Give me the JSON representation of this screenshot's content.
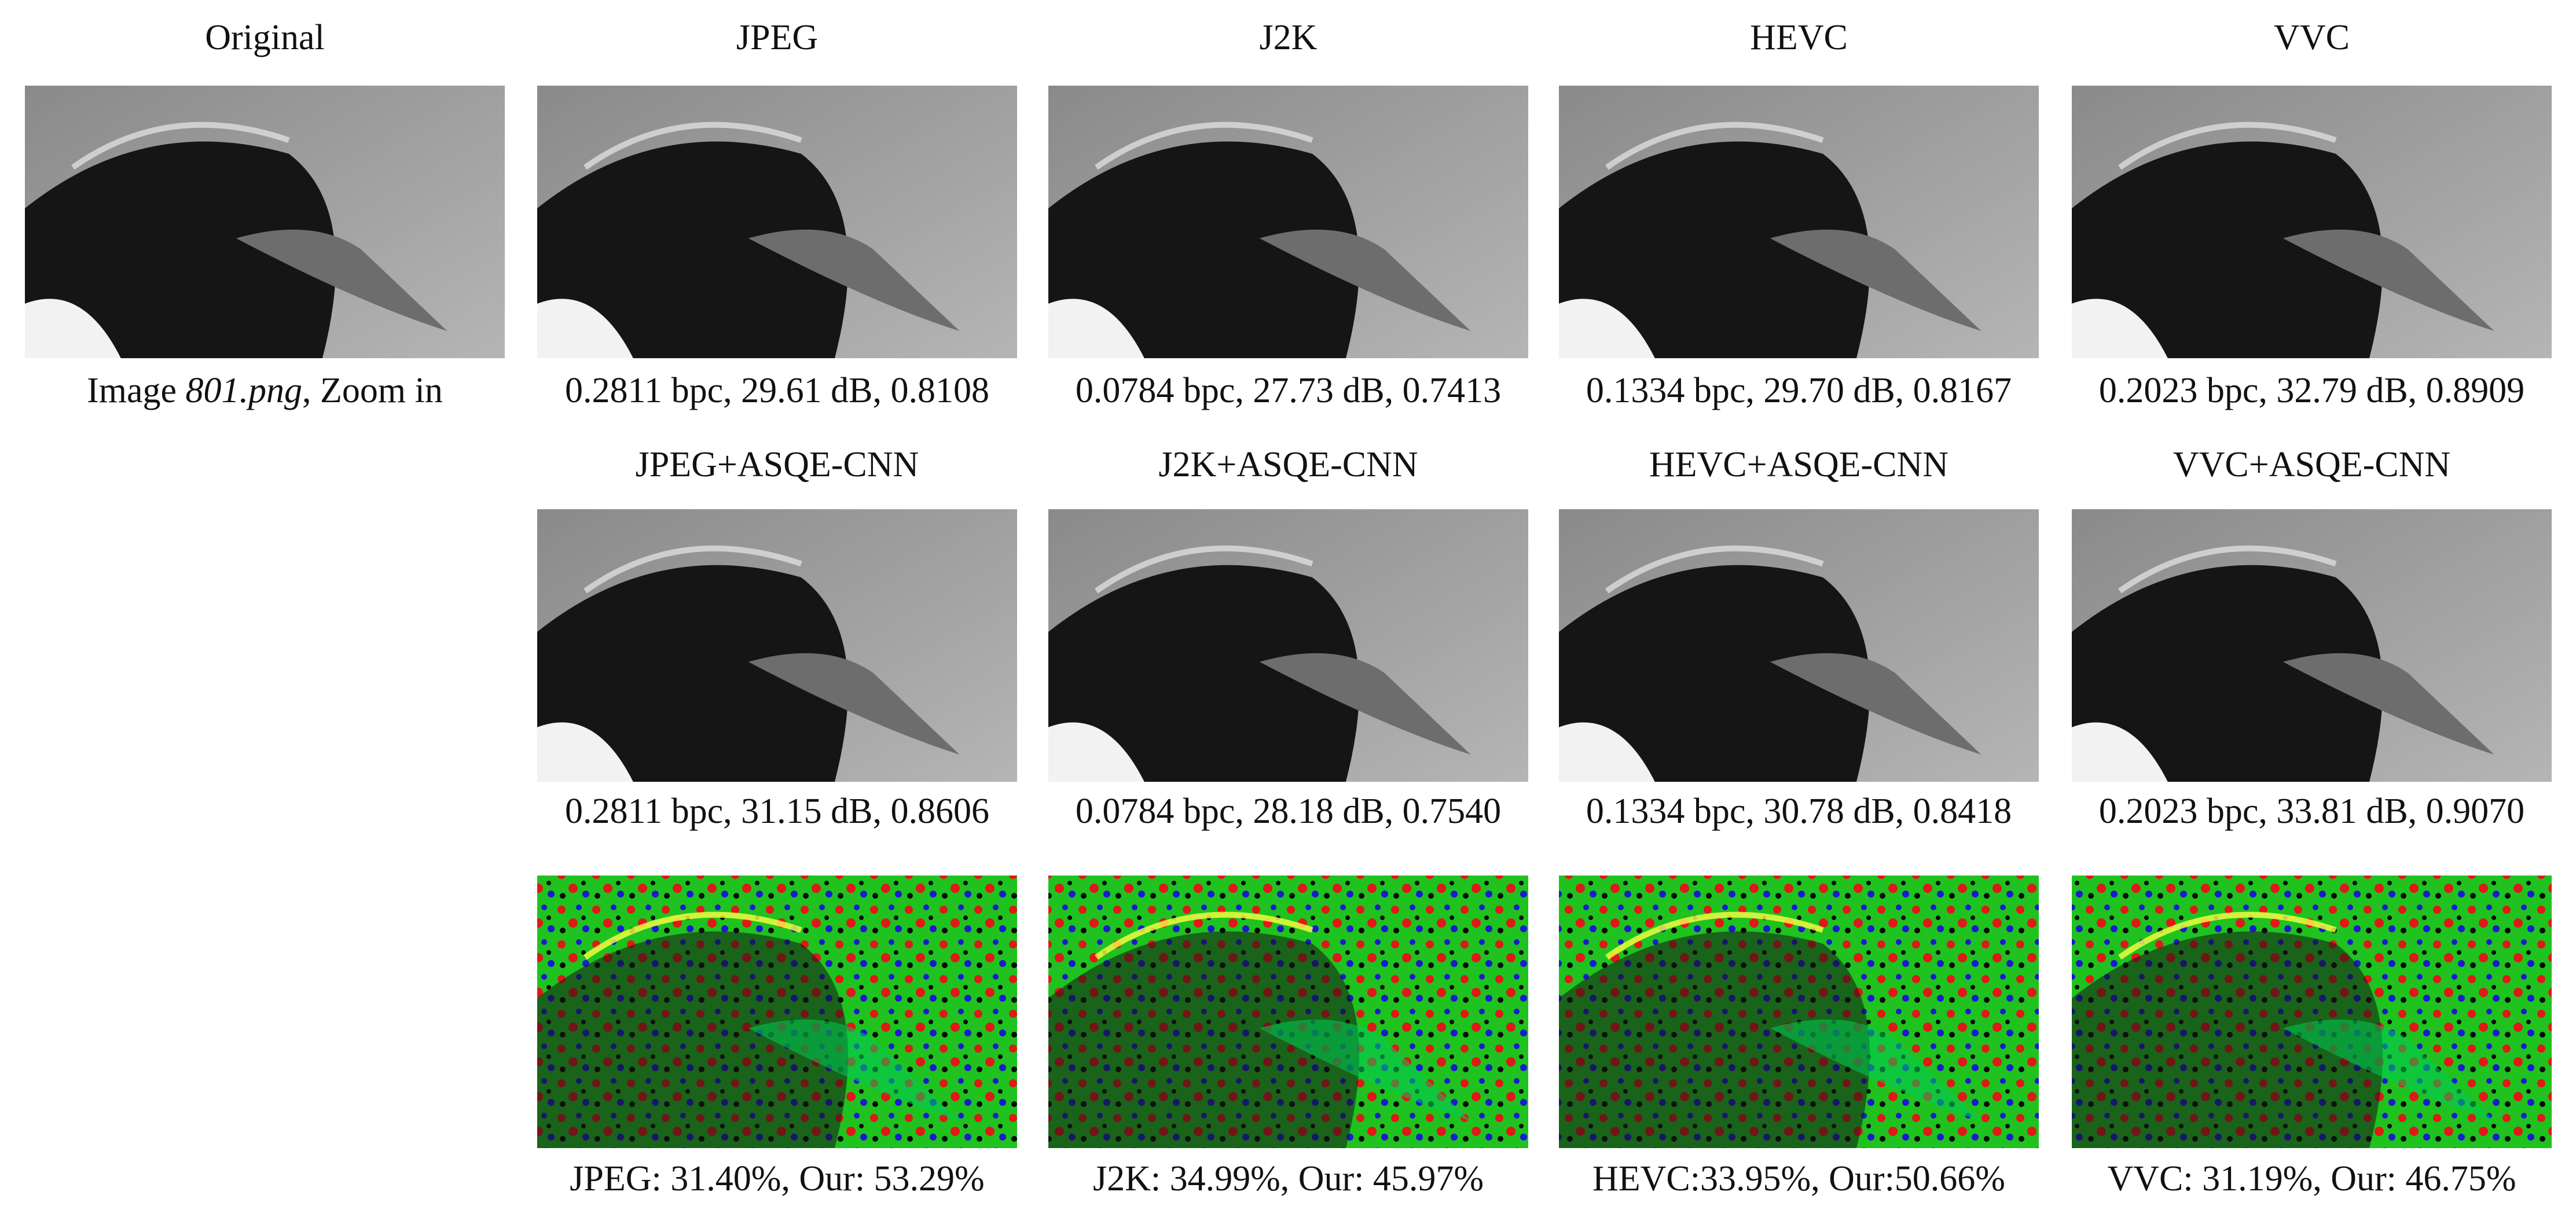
{
  "rows": [
    {
      "panels": [
        {
          "title": "Original",
          "caption": [
            "Image ",
            "801.png",
            ", Zoom in"
          ]
        },
        {
          "title": "JPEG",
          "caption": "0.2811 bpc, 29.61 dB, 0.8108"
        },
        {
          "title": "J2K",
          "caption": "0.0784 bpc, 27.73 dB, 0.7413"
        },
        {
          "title": "HEVC",
          "caption": "0.1334 bpc, 29.70 dB, 0.8167"
        },
        {
          "title": "VVC",
          "caption": "0.2023 bpc, 32.79 dB, 0.8909"
        }
      ]
    },
    {
      "panels": [
        {
          "title": "JPEG+ASQE-CNN",
          "caption": "0.2811 bpc, 31.15 dB, 0.8606"
        },
        {
          "title": "J2K+ASQE-CNN",
          "caption": "0.0784 bpc, 28.18 dB, 0.7540"
        },
        {
          "title": "HEVC+ASQE-CNN",
          "caption": "0.1334 bpc, 30.78 dB, 0.8418"
        },
        {
          "title": "VVC+ASQE-CNN",
          "caption": "0.2023 bpc, 33.81 dB, 0.9070"
        }
      ]
    },
    {
      "panels": [
        {
          "caption": "JPEG: 31.40%, Our: 53.29%"
        },
        {
          "caption": "J2K: 34.99%, Our: 45.97%"
        },
        {
          "caption": "HEVC:33.95%, Our:50.66%"
        },
        {
          "caption": "VVC: 31.19%, Our: 46.75%"
        }
      ]
    }
  ]
}
